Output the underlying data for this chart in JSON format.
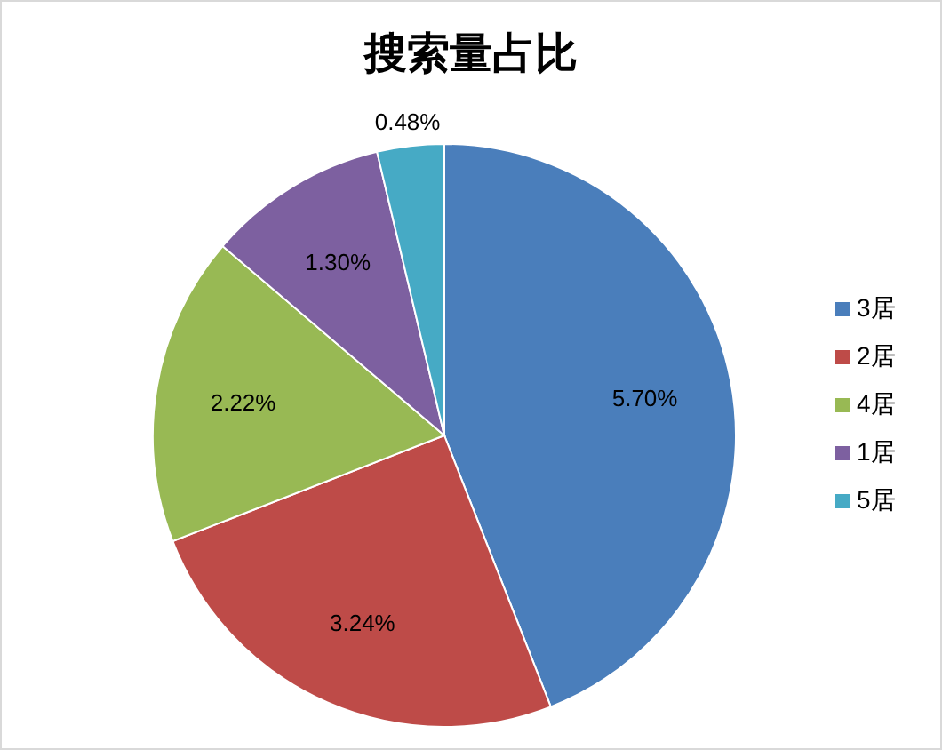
{
  "chart_data": {
    "type": "pie",
    "title": "搜索量占比",
    "categories": [
      "3居",
      "2居",
      "4居",
      "1居",
      "5居"
    ],
    "values": [
      5.7,
      3.24,
      2.22,
      1.3,
      0.48
    ],
    "value_labels": [
      "5.70%",
      "3.24%",
      "2.22%",
      "1.30%",
      "0.48%"
    ],
    "colors": [
      "#4a7ebb",
      "#be4b48",
      "#98b954",
      "#7d60a0",
      "#46aac5"
    ],
    "legend": "right"
  }
}
